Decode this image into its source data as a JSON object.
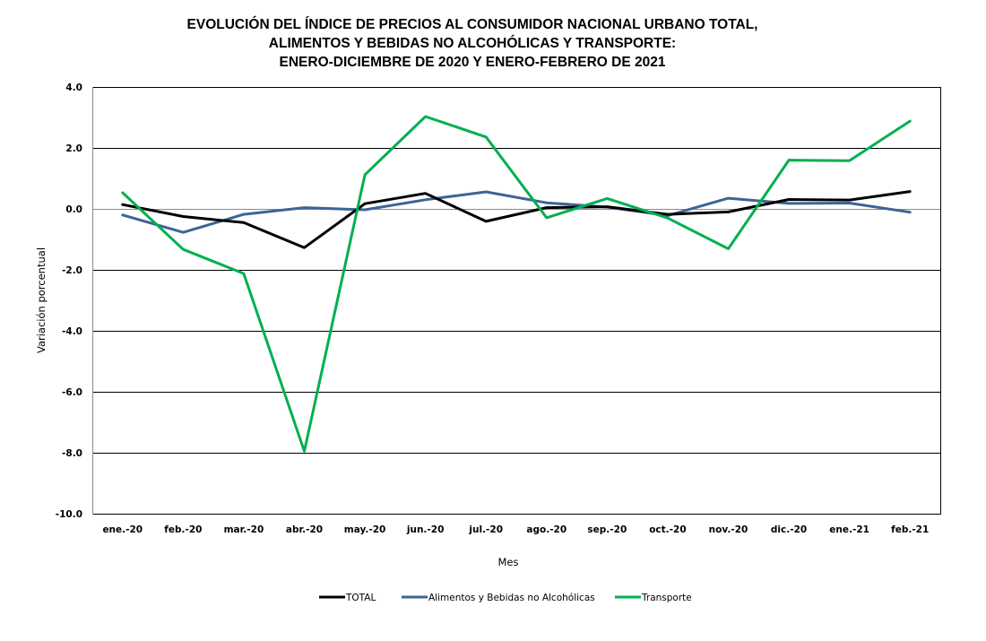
{
  "chart_data": {
    "type": "line",
    "title": [
      "EVOLUCIÓN  DEL ÍNDICE  DE PRECIOS  AL CONSUMIDOR  NACIONAL  URBANO  TOTAL,",
      "ALIMENTOS  Y BEBIDAS  NO ALCOHÓLICAS  Y TRANSPORTE:",
      "ENERO-DICIEMBRE  DE 2020 Y ENERO-FEBRERO  DE 2021"
    ],
    "xlabel": "Mes",
    "ylabel": "Variación porcentual",
    "ylim": [
      -10,
      4
    ],
    "yticks": [
      4,
      2,
      0,
      -2,
      -4,
      -6,
      -8,
      -10
    ],
    "ytick_labels": [
      "4.0",
      "2.0",
      "0.0",
      "-2.0",
      "-4.0",
      "-6.0",
      "-8.0",
      "-10.0"
    ],
    "grid": true,
    "legend_position": "bottom",
    "categories": [
      "ene.-20",
      "feb.-20",
      "mar.-20",
      "abr.-20",
      "may.-20",
      "jun.-20",
      "jul.-20",
      "ago.-20",
      "sep.-20",
      "oct.-20",
      "nov.-20",
      "dic.-20",
      "ene.-21",
      "feb.-21"
    ],
    "series": [
      {
        "name": "TOTAL",
        "color": "#000000",
        "values": [
          0.14,
          -0.25,
          -0.45,
          -1.27,
          0.17,
          0.51,
          -0.41,
          0.04,
          0.07,
          -0.18,
          -0.1,
          0.31,
          0.29,
          0.57
        ]
      },
      {
        "name": "Alimentos y Bebidas no Alcohólicas",
        "color": "#3d6496",
        "values": [
          -0.2,
          -0.77,
          -0.18,
          0.04,
          -0.03,
          0.3,
          0.56,
          0.2,
          0.06,
          -0.22,
          0.35,
          0.18,
          0.19,
          -0.11
        ]
      },
      {
        "name": "Transporte",
        "color": "#00b050",
        "values": [
          0.53,
          -1.33,
          -2.12,
          -7.95,
          1.12,
          3.03,
          2.36,
          -0.29,
          0.34,
          -0.3,
          -1.31,
          1.6,
          1.58,
          2.88
        ]
      }
    ]
  }
}
